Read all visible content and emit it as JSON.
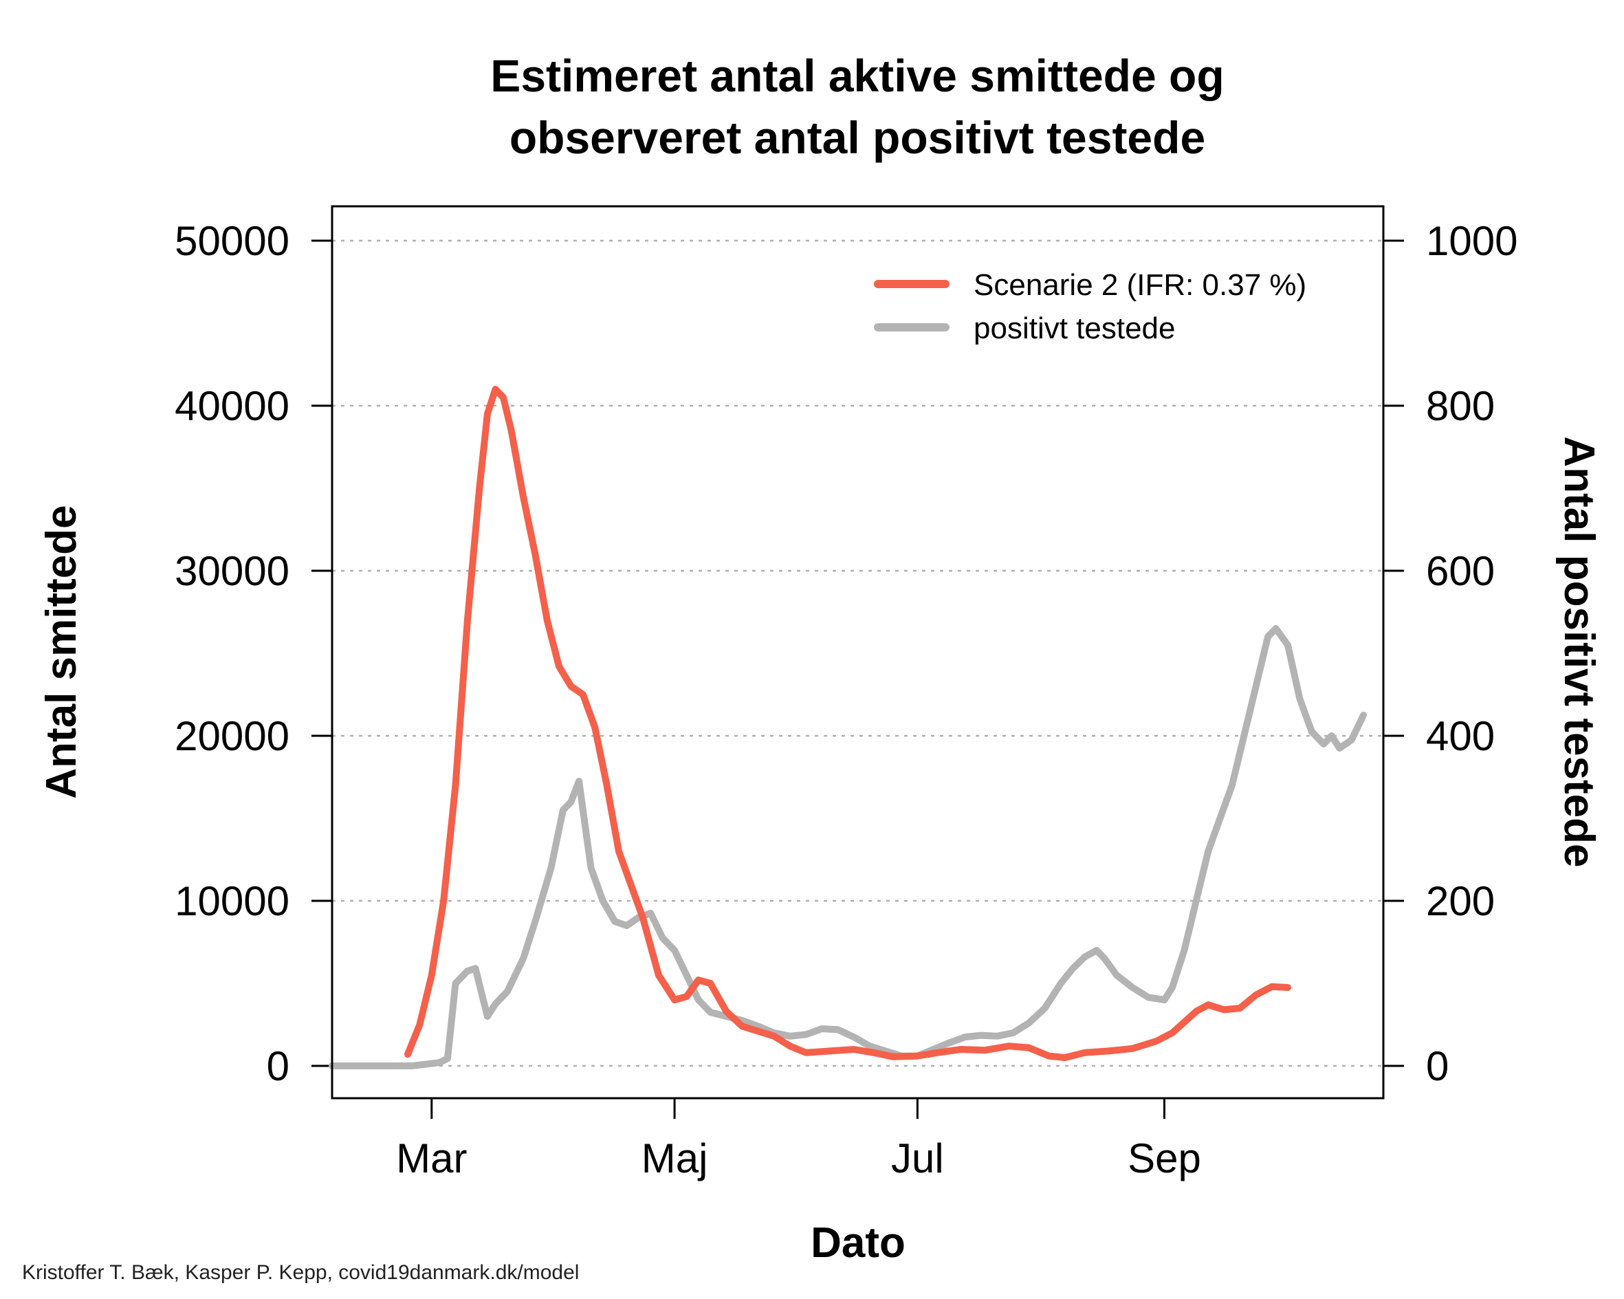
{
  "chart_data": {
    "type": "line",
    "title_lines": [
      "Estimeret antal aktive smittede og",
      "observeret antal positivt testede"
    ],
    "xlabel": "Dato",
    "ylabel_left": "Antal smittede",
    "ylabel_right": "Antal positivt testede",
    "x_ticks": [
      "Mar",
      "Maj",
      "Jul",
      "Sep"
    ],
    "x_tick_dates": [
      "2020-03-01",
      "2020-05-01",
      "2020-07-01",
      "2020-09-01"
    ],
    "xlim": [
      "2020-02-05",
      "2020-10-26"
    ],
    "ylim_left": [
      0,
      50000
    ],
    "ylim_right": [
      0,
      1000
    ],
    "y_ticks_left": [
      "0",
      "10000",
      "20000",
      "30000",
      "40000",
      "50000"
    ],
    "y_ticks_right": [
      "0",
      "200",
      "400",
      "600",
      "800",
      "1000"
    ],
    "grid": "horizontal dotted",
    "legend_position": "top-right",
    "credit": "Kristoffer T. Bæk, Kasper P. Kepp, covid19danmark.dk/model",
    "series": [
      {
        "name": "Scenarie 2 (IFR: 0.37 %)",
        "axis": "left",
        "color": "#f4604a",
        "points": [
          [
            "2020-02-24",
            700
          ],
          [
            "2020-02-27",
            2500
          ],
          [
            "2020-03-01",
            5500
          ],
          [
            "2020-03-04",
            10000
          ],
          [
            "2020-03-07",
            17000
          ],
          [
            "2020-03-10",
            27000
          ],
          [
            "2020-03-13",
            35000
          ],
          [
            "2020-03-15",
            39500
          ],
          [
            "2020-03-17",
            41000
          ],
          [
            "2020-03-19",
            40500
          ],
          [
            "2020-03-21",
            38500
          ],
          [
            "2020-03-24",
            34500
          ],
          [
            "2020-03-27",
            31000
          ],
          [
            "2020-03-30",
            27000
          ],
          [
            "2020-04-02",
            24200
          ],
          [
            "2020-04-05",
            23000
          ],
          [
            "2020-04-08",
            22500
          ],
          [
            "2020-04-11",
            20500
          ],
          [
            "2020-04-14",
            17000
          ],
          [
            "2020-04-17",
            13000
          ],
          [
            "2020-04-20",
            11000
          ],
          [
            "2020-04-23",
            9000
          ],
          [
            "2020-04-27",
            5500
          ],
          [
            "2020-05-01",
            4000
          ],
          [
            "2020-05-04",
            4200
          ],
          [
            "2020-05-07",
            5200
          ],
          [
            "2020-05-10",
            5000
          ],
          [
            "2020-05-14",
            3300
          ],
          [
            "2020-05-18",
            2400
          ],
          [
            "2020-05-22",
            2100
          ],
          [
            "2020-05-26",
            1800
          ],
          [
            "2020-05-30",
            1200
          ],
          [
            "2020-06-03",
            800
          ],
          [
            "2020-06-09",
            900
          ],
          [
            "2020-06-15",
            1000
          ],
          [
            "2020-06-20",
            800
          ],
          [
            "2020-06-25",
            550
          ],
          [
            "2020-07-01",
            600
          ],
          [
            "2020-07-06",
            800
          ],
          [
            "2020-07-12",
            1000
          ],
          [
            "2020-07-18",
            950
          ],
          [
            "2020-07-24",
            1200
          ],
          [
            "2020-07-29",
            1100
          ],
          [
            "2020-08-03",
            600
          ],
          [
            "2020-08-07",
            500
          ],
          [
            "2020-08-12",
            800
          ],
          [
            "2020-08-18",
            900
          ],
          [
            "2020-08-24",
            1050
          ],
          [
            "2020-08-30",
            1500
          ],
          [
            "2020-09-03",
            2000
          ],
          [
            "2020-09-09",
            3300
          ],
          [
            "2020-09-12",
            3700
          ],
          [
            "2020-09-16",
            3400
          ],
          [
            "2020-09-20",
            3500
          ],
          [
            "2020-09-24",
            4300
          ],
          [
            "2020-09-28",
            4800
          ],
          [
            "2020-10-02",
            4750
          ]
        ]
      },
      {
        "name": "positivt testede",
        "axis": "right",
        "color": "#b3b3b3",
        "points": [
          [
            "2020-02-05",
            0
          ],
          [
            "2020-02-25",
            0
          ],
          [
            "2020-03-03",
            4
          ],
          [
            "2020-03-05",
            9
          ],
          [
            "2020-03-07",
            100
          ],
          [
            "2020-03-10",
            115
          ],
          [
            "2020-03-12",
            118
          ],
          [
            "2020-03-15",
            60
          ],
          [
            "2020-03-17",
            75
          ],
          [
            "2020-03-20",
            90
          ],
          [
            "2020-03-24",
            130
          ],
          [
            "2020-03-27",
            175
          ],
          [
            "2020-03-31",
            240
          ],
          [
            "2020-04-03",
            310
          ],
          [
            "2020-04-05",
            320
          ],
          [
            "2020-04-07",
            345
          ],
          [
            "2020-04-10",
            240
          ],
          [
            "2020-04-13",
            200
          ],
          [
            "2020-04-16",
            175
          ],
          [
            "2020-04-19",
            170
          ],
          [
            "2020-04-22",
            180
          ],
          [
            "2020-04-25",
            185
          ],
          [
            "2020-04-28",
            155
          ],
          [
            "2020-05-01",
            140
          ],
          [
            "2020-05-04",
            110
          ],
          [
            "2020-05-07",
            80
          ],
          [
            "2020-05-10",
            65
          ],
          [
            "2020-05-14",
            60
          ],
          [
            "2020-05-18",
            55
          ],
          [
            "2020-05-22",
            48
          ],
          [
            "2020-05-26",
            40
          ],
          [
            "2020-05-30",
            36
          ],
          [
            "2020-06-03",
            38
          ],
          [
            "2020-06-07",
            45
          ],
          [
            "2020-06-11",
            44
          ],
          [
            "2020-06-15",
            35
          ],
          [
            "2020-06-19",
            24
          ],
          [
            "2020-06-23",
            18
          ],
          [
            "2020-06-27",
            12
          ],
          [
            "2020-07-01",
            12
          ],
          [
            "2020-07-05",
            20
          ],
          [
            "2020-07-09",
            28
          ],
          [
            "2020-07-13",
            35
          ],
          [
            "2020-07-17",
            37
          ],
          [
            "2020-07-21",
            36
          ],
          [
            "2020-07-25",
            40
          ],
          [
            "2020-07-29",
            52
          ],
          [
            "2020-08-02",
            70
          ],
          [
            "2020-08-06",
            100
          ],
          [
            "2020-08-09",
            118
          ],
          [
            "2020-08-12",
            132
          ],
          [
            "2020-08-15",
            140
          ],
          [
            "2020-08-17",
            130
          ],
          [
            "2020-08-20",
            110
          ],
          [
            "2020-08-24",
            95
          ],
          [
            "2020-08-28",
            83
          ],
          [
            "2020-09-01",
            80
          ],
          [
            "2020-09-03",
            95
          ],
          [
            "2020-09-06",
            140
          ],
          [
            "2020-09-09",
            200
          ],
          [
            "2020-09-12",
            260
          ],
          [
            "2020-09-15",
            300
          ],
          [
            "2020-09-18",
            340
          ],
          [
            "2020-09-21",
            400
          ],
          [
            "2020-09-24",
            460
          ],
          [
            "2020-09-27",
            520
          ],
          [
            "2020-09-29",
            530
          ],
          [
            "2020-10-02",
            510
          ],
          [
            "2020-10-05",
            445
          ],
          [
            "2020-10-08",
            405
          ],
          [
            "2020-10-11",
            390
          ],
          [
            "2020-10-13",
            400
          ],
          [
            "2020-10-15",
            385
          ],
          [
            "2020-10-18",
            395
          ],
          [
            "2020-10-21",
            425
          ]
        ]
      }
    ]
  }
}
